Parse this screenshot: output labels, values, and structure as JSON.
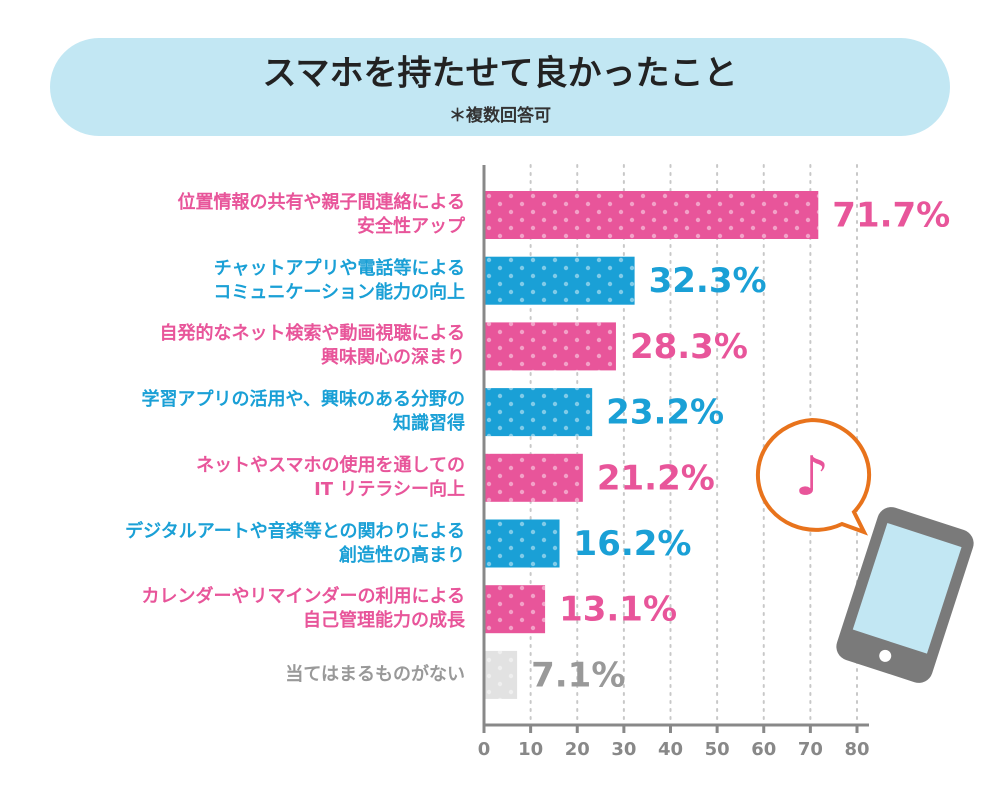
{
  "chart_data": {
    "type": "bar",
    "orientation": "horizontal",
    "title": "スマホを持たせて良かったこと",
    "subtitle": "＊複数回答可",
    "categories": [
      "位置情報の共有や親子間連絡による\n安全性アップ",
      "チャットアプリや電話等による\nコミュニケーション能力の向上",
      "自発的なネット検索や動画視聴による\n興味関心の深まり",
      "学習アプリの活用や、興味のある分野の\n知識習得",
      "ネットやスマホの使用を通しての\nIT リテラシー向上",
      "デジタルアートや音楽等との関わりによる\n創造性の高まり",
      "カレンダーやリマインダーの利用による\n自己管理能力の成長",
      "当てはまるものがない"
    ],
    "values": [
      71.7,
      32.3,
      28.3,
      23.2,
      21.2,
      16.2,
      13.1,
      7.1
    ],
    "value_labels": [
      "71.7%",
      "32.3%",
      "28.3%",
      "23.2%",
      "21.2%",
      "16.2%",
      "13.1%",
      "7.1%"
    ],
    "colors": [
      "#e8559a",
      "#1aa0d6",
      "#e8559a",
      "#1aa0d6",
      "#e8559a",
      "#1aa0d6",
      "#e8559a",
      "#e2e2e2"
    ],
    "label_colors": [
      "#e8559a",
      "#1aa0d6",
      "#e8559a",
      "#1aa0d6",
      "#e8559a",
      "#1aa0d6",
      "#e8559a",
      "#999999"
    ],
    "xlim": [
      0,
      80
    ],
    "xticks": [
      0,
      10,
      20,
      30,
      40,
      50,
      60,
      70,
      80
    ],
    "grid": true
  }
}
